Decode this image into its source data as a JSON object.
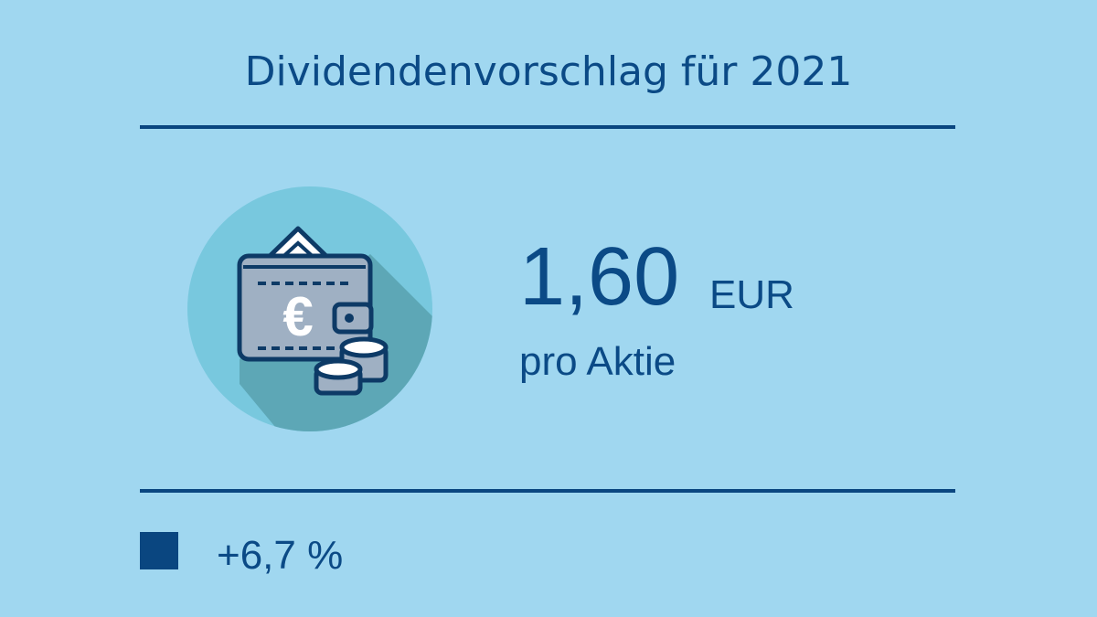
{
  "header": {
    "title": "Dividendenvorschlag für 2021"
  },
  "dividend": {
    "amount": "1,60",
    "currency": "EUR",
    "per": "pro Aktie"
  },
  "change": {
    "label": "+6,7 %"
  }
}
